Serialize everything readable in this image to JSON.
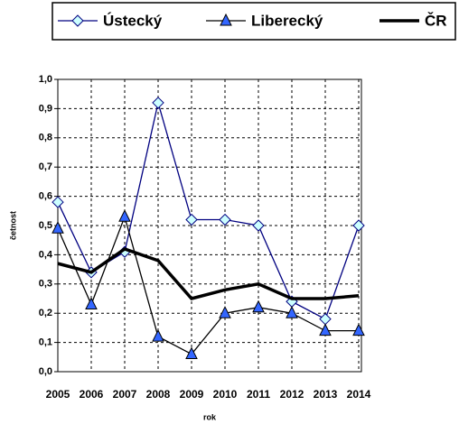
{
  "chart_data": {
    "type": "line",
    "x_label": "rok",
    "y_label": "četnost",
    "categories": [
      "2005",
      "2006",
      "2007",
      "2008",
      "2009",
      "2010",
      "2011",
      "2012",
      "2013",
      "2014"
    ],
    "series": [
      {
        "name": "Ústecký",
        "color": "#000080",
        "marker": "diamond",
        "marker_color": "#ccffff",
        "values": [
          0.58,
          0.34,
          0.41,
          0.92,
          0.52,
          0.52,
          0.5,
          0.24,
          0.18,
          0.5
        ]
      },
      {
        "name": "Liberecký",
        "color": "#000000",
        "marker": "triangle",
        "marker_color": "#3366ff",
        "values": [
          0.49,
          0.23,
          0.53,
          0.12,
          0.06,
          0.2,
          0.22,
          0.2,
          0.14,
          0.14
        ]
      },
      {
        "name": "ČR",
        "color": "#000000",
        "marker": "none",
        "values": [
          0.37,
          0.34,
          0.42,
          0.38,
          0.25,
          0.28,
          0.3,
          0.25,
          0.25,
          0.26
        ]
      }
    ],
    "ylim": [
      0,
      1
    ],
    "yticks": [
      {
        "value": 0,
        "label": "0,0"
      },
      {
        "value": 0.1,
        "label": "0,1"
      },
      {
        "value": 0.2,
        "label": "0,2"
      },
      {
        "value": 0.3,
        "label": "0,3"
      },
      {
        "value": 0.4,
        "label": "0,4"
      },
      {
        "value": 0.5,
        "label": "0,5"
      },
      {
        "value": 0.6,
        "label": "0,6"
      },
      {
        "value": 0.7,
        "label": "0,7"
      },
      {
        "value": 0.8,
        "label": "0,8"
      },
      {
        "value": 0.9,
        "label": "0,9"
      },
      {
        "value": 1,
        "label": "1,0"
      }
    ],
    "grid": true,
    "legend": "top"
  }
}
